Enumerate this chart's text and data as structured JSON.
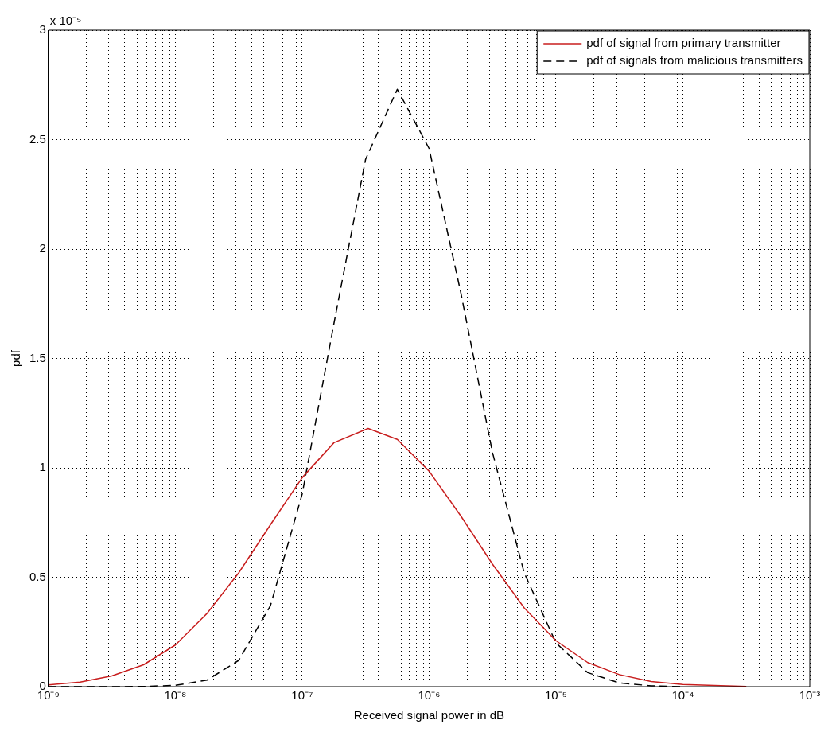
{
  "chart_data": {
    "type": "line",
    "xlabel": "Received signal power in dB",
    "ylabel": "pdf",
    "annotations": [
      "x 10⁻⁵"
    ],
    "log": "x",
    "grid": true,
    "legend": "top right",
    "xlim": [
      1e-09,
      0.001
    ],
    "ylim": [
      0,
      3
    ],
    "xticks": [
      {
        "value": 1e-09,
        "label": "10⁻⁹"
      },
      {
        "value": 2e-09,
        "label": null
      },
      {
        "value": 3e-09,
        "label": null
      },
      {
        "value": 4e-09,
        "label": null
      },
      {
        "value": 5e-09,
        "label": null
      },
      {
        "value": 6e-09,
        "label": null
      },
      {
        "value": 7e-09,
        "label": null
      },
      {
        "value": 8e-09,
        "label": null
      },
      {
        "value": 9e-09,
        "label": null
      },
      {
        "value": 1e-08,
        "label": "10⁻⁸"
      },
      {
        "value": 2e-08,
        "label": null
      },
      {
        "value": 3e-08,
        "label": null
      },
      {
        "value": 4e-08,
        "label": null
      },
      {
        "value": 5e-08,
        "label": null
      },
      {
        "value": 6e-08,
        "label": null
      },
      {
        "value": 7e-08,
        "label": null
      },
      {
        "value": 8e-08,
        "label": null
      },
      {
        "value": 9e-08,
        "label": null
      },
      {
        "value": 1e-07,
        "label": "10⁻⁷"
      },
      {
        "value": 2e-07,
        "label": null
      },
      {
        "value": 3e-07,
        "label": null
      },
      {
        "value": 4e-07,
        "label": null
      },
      {
        "value": 5e-07,
        "label": null
      },
      {
        "value": 6e-07,
        "label": null
      },
      {
        "value": 7e-07,
        "label": null
      },
      {
        "value": 8e-07,
        "label": null
      },
      {
        "value": 9e-07,
        "label": null
      },
      {
        "value": 1e-06,
        "label": "10⁻⁶"
      },
      {
        "value": 2e-06,
        "label": null
      },
      {
        "value": 3e-06,
        "label": null
      },
      {
        "value": 4e-06,
        "label": null
      },
      {
        "value": 5e-06,
        "label": null
      },
      {
        "value": 6e-06,
        "label": null
      },
      {
        "value": 7e-06,
        "label": null
      },
      {
        "value": 8e-06,
        "label": null
      },
      {
        "value": 9e-06,
        "label": null
      },
      {
        "value": 1e-05,
        "label": "10⁻⁵"
      },
      {
        "value": 2e-05,
        "label": null
      },
      {
        "value": 3e-05,
        "label": null
      },
      {
        "value": 4e-05,
        "label": null
      },
      {
        "value": 5e-05,
        "label": null
      },
      {
        "value": 6e-05,
        "label": null
      },
      {
        "value": 7e-05,
        "label": null
      },
      {
        "value": 8e-05,
        "label": null
      },
      {
        "value": 9e-05,
        "label": null
      },
      {
        "value": 0.0001,
        "label": "10⁻⁴"
      },
      {
        "value": 0.0002,
        "label": null
      },
      {
        "value": 0.0003,
        "label": null
      },
      {
        "value": 0.0004,
        "label": null
      },
      {
        "value": 0.0005,
        "label": null
      },
      {
        "value": 0.0006,
        "label": null
      },
      {
        "value": 0.0007,
        "label": null
      },
      {
        "value": 0.0008,
        "label": null
      },
      {
        "value": 0.0009,
        "label": null
      },
      {
        "value": 0.001,
        "label": "10⁻³"
      }
    ],
    "yticks": [
      0,
      0.5,
      1,
      1.5,
      2,
      2.5,
      3
    ],
    "series": [
      {
        "name": "pdf of signal from primary transmitter",
        "color": "#c81e1e",
        "line_style": "solid",
        "x": [
          1e-09,
          1.78e-09,
          3.16e-09,
          5.62e-09,
          1e-08,
          1.78e-08,
          3.16e-08,
          5.62e-08,
          1e-07,
          1.78e-07,
          3.31e-07,
          5.62e-07,
          1e-06,
          1.78e-06,
          3.16e-06,
          5.62e-06,
          1e-05,
          1.78e-05,
          3.16e-05,
          5.62e-05,
          0.0001,
          0.000316
        ],
        "values": [
          0.008,
          0.021,
          0.049,
          0.1,
          0.19,
          0.335,
          0.52,
          0.74,
          0.955,
          1.115,
          1.18,
          1.13,
          0.985,
          0.78,
          0.56,
          0.36,
          0.21,
          0.11,
          0.055,
          0.024,
          0.01,
          0.001
        ]
      },
      {
        "name": "pdf of signals from malicious transmitters",
        "color": "#000000",
        "line_style": "dashed",
        "x": [
          1e-09,
          3.16e-09,
          5.62e-09,
          1e-08,
          1.78e-08,
          3.16e-08,
          5.62e-08,
          1e-07,
          1.78e-07,
          3.16e-07,
          5.62e-07,
          1e-06,
          1.78e-06,
          3.16e-06,
          5.62e-06,
          1e-05,
          1.78e-05,
          3.16e-05,
          5.62e-05,
          0.0001
        ],
        "values": [
          0,
          0,
          0.001,
          0.006,
          0.03,
          0.12,
          0.37,
          0.88,
          1.66,
          2.41,
          2.73,
          2.46,
          1.8,
          1.07,
          0.52,
          0.2,
          0.064,
          0.017,
          0.004,
          0
        ]
      }
    ]
  }
}
